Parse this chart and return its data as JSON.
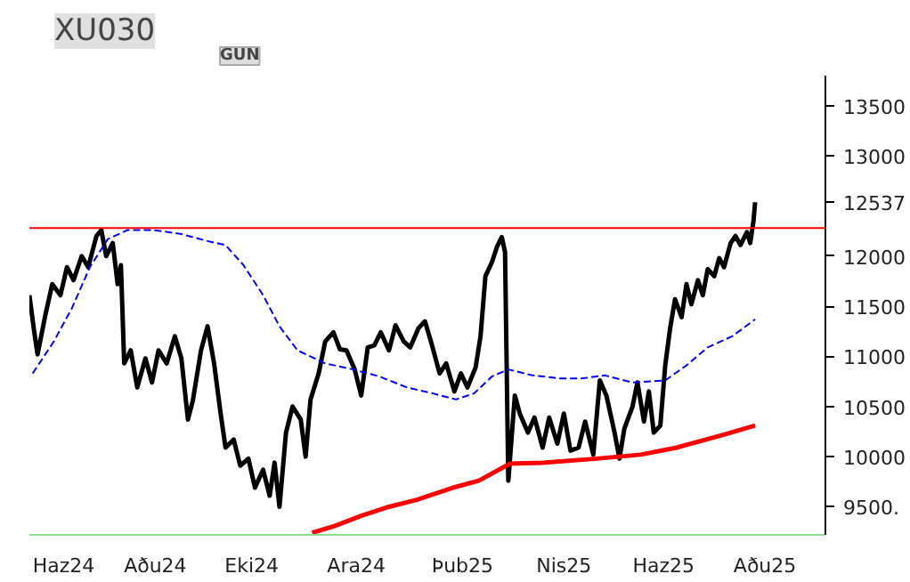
{
  "chart_data": {
    "type": "line",
    "title": "XU030",
    "subtitle": "GUN",
    "xlim": [
      "2024-06-04",
      "2025-10-04"
    ],
    "ylim": [
      9220,
      13800
    ],
    "xticks": [
      {
        "value": "2024-06-25",
        "label": "Haz24"
      },
      {
        "value": "2024-08-20",
        "label": "Aðu24"
      },
      {
        "value": "2024-10-18",
        "label": "Eki24"
      },
      {
        "value": "2024-12-21",
        "label": "Ara24"
      },
      {
        "value": "2025-02-24",
        "label": "Þub25"
      },
      {
        "value": "2025-04-27",
        "label": "Nis25"
      },
      {
        "value": "2025-06-27",
        "label": "Haz25"
      },
      {
        "value": "2025-08-28",
        "label": "Aðu25"
      }
    ],
    "yticks": [
      {
        "value": 9500,
        "label": "9500."
      },
      10000,
      10500,
      11000,
      11500,
      12000,
      12537,
      13000,
      13500
    ],
    "grid": false,
    "ref_lines": [
      {
        "axis": "y",
        "value": 12280,
        "color": "#ff0000"
      }
    ],
    "series": [
      {
        "color": "#000000",
        "line_style": "solid",
        "x": [
          "2024-06-04",
          "2024-06-07",
          "2024-06-09",
          "2024-06-14",
          "2024-06-18",
          "2024-06-23",
          "2024-06-27",
          "2024-07-01",
          "2024-07-06",
          "2024-07-10",
          "2024-07-15",
          "2024-07-18",
          "2024-07-21",
          "2024-07-25",
          "2024-07-28",
          "2024-07-30",
          "2024-08-01",
          "2024-08-05",
          "2024-08-09",
          "2024-08-14",
          "2024-08-18",
          "2024-08-22",
          "2024-08-27",
          "2024-09-01",
          "2024-09-05",
          "2024-09-09",
          "2024-09-12",
          "2024-09-17",
          "2024-09-21",
          "2024-09-25",
          "2024-09-29",
          "2024-10-02",
          "2024-10-07",
          "2024-10-11",
          "2024-10-16",
          "2024-10-20",
          "2024-10-25",
          "2024-10-29",
          "2024-11-01",
          "2024-11-04",
          "2024-11-08",
          "2024-11-12",
          "2024-11-17",
          "2024-11-20",
          "2024-11-23",
          "2024-11-28",
          "2024-12-02",
          "2024-12-07",
          "2024-12-11",
          "2024-12-15",
          "2024-12-20",
          "2024-12-24",
          "2024-12-28",
          "2025-01-01",
          "2025-01-05",
          "2025-01-10",
          "2025-01-14",
          "2025-01-19",
          "2025-01-23",
          "2025-01-28",
          "2025-02-01",
          "2025-02-05",
          "2025-02-10",
          "2025-02-14",
          "2025-02-19",
          "2025-02-23",
          "2025-02-27",
          "2025-03-04",
          "2025-03-07",
          "2025-03-10",
          "2025-03-14",
          "2025-03-17",
          "2025-03-20",
          "2025-03-22",
          "2025-03-24",
          "2025-03-28",
          "2025-03-31",
          "2025-04-05",
          "2025-04-09",
          "2025-04-14",
          "2025-04-18",
          "2025-04-23",
          "2025-04-27",
          "2025-05-01",
          "2025-05-06",
          "2025-05-10",
          "2025-05-15",
          "2025-05-19",
          "2025-05-23",
          "2025-05-28",
          "2025-05-31",
          "2025-06-03",
          "2025-06-08",
          "2025-06-11",
          "2025-06-15",
          "2025-06-18",
          "2025-06-21",
          "2025-06-25",
          "2025-06-28",
          "2025-07-01",
          "2025-07-04",
          "2025-07-08",
          "2025-07-11",
          "2025-07-14",
          "2025-07-18",
          "2025-07-21",
          "2025-07-24",
          "2025-07-28",
          "2025-07-31",
          "2025-08-03",
          "2025-08-07",
          "2025-08-10",
          "2025-08-13",
          "2025-08-17",
          "2025-08-19",
          "2025-08-21",
          "2025-08-22"
        ],
        "values": [
          11610,
          11240,
          11020,
          11430,
          11720,
          11610,
          11890,
          11760,
          12000,
          11890,
          12200,
          12260,
          12000,
          12130,
          11720,
          11910,
          10930,
          11060,
          10690,
          10980,
          10740,
          11060,
          10930,
          11200,
          10980,
          10370,
          10560,
          11060,
          11300,
          10930,
          10430,
          10090,
          10170,
          9910,
          9980,
          9690,
          9870,
          9610,
          9940,
          9500,
          10240,
          10500,
          10370,
          10000,
          10570,
          10830,
          11150,
          11240,
          11070,
          11060,
          10870,
          10610,
          11090,
          11110,
          11240,
          11060,
          11310,
          11150,
          11090,
          11280,
          11350,
          11130,
          10830,
          10930,
          10650,
          10830,
          10690,
          10890,
          11200,
          11800,
          11940,
          12090,
          12190,
          12040,
          9760,
          10610,
          10430,
          10240,
          10390,
          10090,
          10390,
          10130,
          10430,
          10060,
          10090,
          10350,
          10020,
          10760,
          10610,
          10240,
          9980,
          10280,
          10500,
          10740,
          10350,
          10650,
          10240,
          10310,
          10910,
          11280,
          11570,
          11390,
          11720,
          11520,
          11760,
          11610,
          11870,
          11800,
          11980,
          11890,
          12130,
          12200,
          12110,
          12240,
          12130,
          12350,
          12537
        ]
      },
      {
        "color": "#0000ff",
        "line_style": "dashed",
        "x": [
          "2024-06-06",
          "2024-06-19",
          "2024-06-30",
          "2024-07-11",
          "2024-07-22",
          "2024-08-03",
          "2024-08-19",
          "2024-09-05",
          "2024-09-21",
          "2024-10-02",
          "2024-10-13",
          "2024-10-25",
          "2024-11-04",
          "2024-11-15",
          "2024-12-02",
          "2024-12-19",
          "2025-01-04",
          "2025-01-21",
          "2025-02-06",
          "2025-02-20",
          "2025-03-03",
          "2025-03-14",
          "2025-03-24",
          "2025-04-08",
          "2025-04-25",
          "2025-05-08",
          "2025-05-22",
          "2025-06-08",
          "2025-06-28",
          "2025-07-11",
          "2025-07-24",
          "2025-08-08",
          "2025-08-22"
        ],
        "values": [
          10830,
          11150,
          11480,
          11890,
          12170,
          12260,
          12260,
          12220,
          12150,
          12110,
          11910,
          11610,
          11300,
          11060,
          10930,
          10870,
          10800,
          10690,
          10630,
          10570,
          10630,
          10800,
          10870,
          10810,
          10780,
          10780,
          10810,
          10740,
          10760,
          10910,
          11090,
          11200,
          11370
        ]
      },
      {
        "color": "#ff0000",
        "line_style": "solid",
        "x": [
          "2024-11-24",
          "2024-12-08",
          "2024-12-24",
          "2025-01-10",
          "2025-01-27",
          "2025-02-18",
          "2025-03-06",
          "2025-03-25",
          "2025-04-14",
          "2025-05-17",
          "2025-06-13",
          "2025-07-05",
          "2025-08-03",
          "2025-08-22"
        ],
        "values": [
          9240,
          9310,
          9410,
          9500,
          9570,
          9690,
          9760,
          9930,
          9940,
          9980,
          10020,
          10090,
          10220,
          10310
        ]
      }
    ]
  }
}
